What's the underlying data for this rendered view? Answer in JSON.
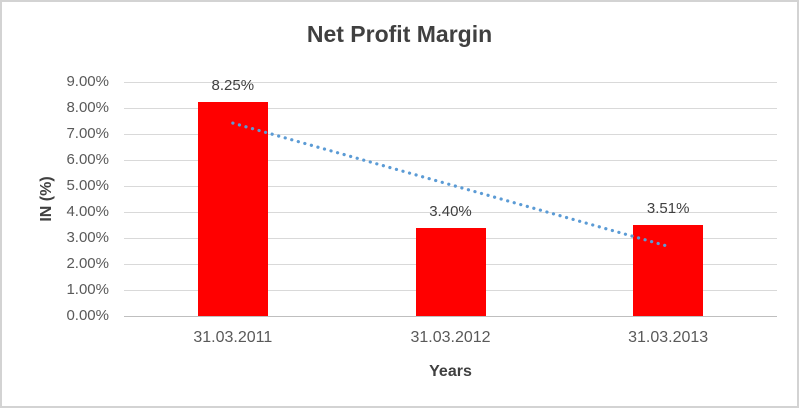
{
  "chart_data": {
    "type": "bar",
    "title": "Net Profit Margin",
    "categories": [
      "31.03.2011",
      "31.03.2012",
      "31.03.2013"
    ],
    "values": [
      8.25,
      3.4,
      3.51
    ],
    "data_labels": [
      "8.25%",
      "3.40%",
      "3.51%"
    ],
    "xlabel": "Years",
    "ylabel": "IN (%)",
    "ylim": [
      0,
      9
    ],
    "ytick_step": 1,
    "ytick_labels": [
      "0.00%",
      "1.00%",
      "2.00%",
      "3.00%",
      "4.00%",
      "5.00%",
      "6.00%",
      "7.00%",
      "8.00%",
      "9.00%"
    ],
    "grid": true,
    "legend": false,
    "bar_color": "#FF0000",
    "trendline": {
      "type": "linear",
      "style": "dotted",
      "color": "#5B9BD5",
      "fit_values": [
        7.42,
        5.05,
        2.68
      ]
    },
    "colors": {
      "gridline": "#D9D9D9",
      "axis_line": "#BFBFBF",
      "title_text": "#404040",
      "tick_text": "#595959",
      "frame_border": "#D3D3D3",
      "background": "#FFFFFF"
    }
  }
}
